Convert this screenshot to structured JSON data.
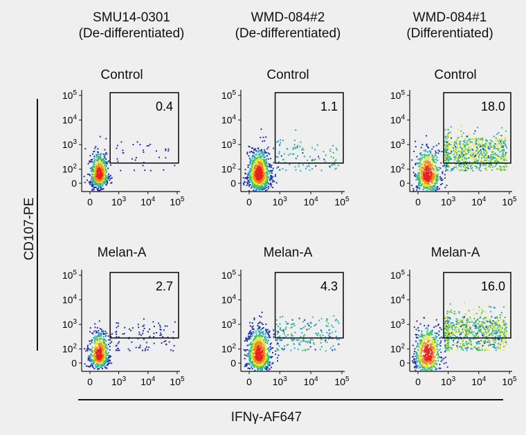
{
  "columns": [
    {
      "name": "SMU14-0301",
      "state": "(De-differentiated)"
    },
    {
      "name": "WMD-084#2",
      "state": "(De-differentiated)"
    },
    {
      "name": "WMD-084#1",
      "state": "(Differentiated)"
    }
  ],
  "rows": [
    "Control",
    "Melan-A"
  ],
  "axes": {
    "ylabel": "CD107-PE",
    "xlabel": "IFNγ-AF647",
    "y_ticks": [
      "0",
      "10^2",
      "10^3",
      "10^4",
      "10^5"
    ],
    "x_ticks": [
      "0",
      "10^3",
      "10^4",
      "10^5"
    ],
    "scale": "biexponential"
  },
  "colors": {
    "background": "#efefef",
    "low_density": "#1c2fa8",
    "high_density": "#e8221b",
    "gate": "#111111"
  },
  "chart_data": {
    "type": "scatter",
    "subtype": "flow-cytometry density dot plot grid",
    "grid": false,
    "panels": [
      {
        "row": "Control",
        "column": "SMU14-0301",
        "gate_percent": "0.4",
        "gate": {
          "x_from": "10^2.3",
          "x_to": "10^5",
          "y_from": "10^2.3",
          "y_to": "10^5"
        }
      },
      {
        "row": "Control",
        "column": "WMD-084#2",
        "gate_percent": "1.1",
        "gate": {
          "x_from": "10^2.5",
          "x_to": "10^5",
          "y_from": "10^2.3",
          "y_to": "10^5"
        }
      },
      {
        "row": "Control",
        "column": "WMD-084#1",
        "gate_percent": "18.0",
        "gate": {
          "x_from": "10^2.5",
          "x_to": "10^5",
          "y_from": "10^2.3",
          "y_to": "10^5"
        }
      },
      {
        "row": "Melan-A",
        "column": "SMU14-0301",
        "gate_percent": "2.7",
        "gate": {
          "x_from": "10^2.3",
          "x_to": "10^5",
          "y_from": "10^2.3",
          "y_to": "10^5"
        }
      },
      {
        "row": "Melan-A",
        "column": "WMD-084#2",
        "gate_percent": "4.3",
        "gate": {
          "x_from": "10^2.5",
          "x_to": "10^5",
          "y_from": "10^2.3",
          "y_to": "10^5"
        }
      },
      {
        "row": "Melan-A",
        "column": "WMD-084#1",
        "gate_percent": "16.0",
        "gate": {
          "x_from": "10^2.5",
          "x_to": "10^5",
          "y_from": "10^2.3",
          "y_to": "10^5"
        }
      }
    ]
  }
}
